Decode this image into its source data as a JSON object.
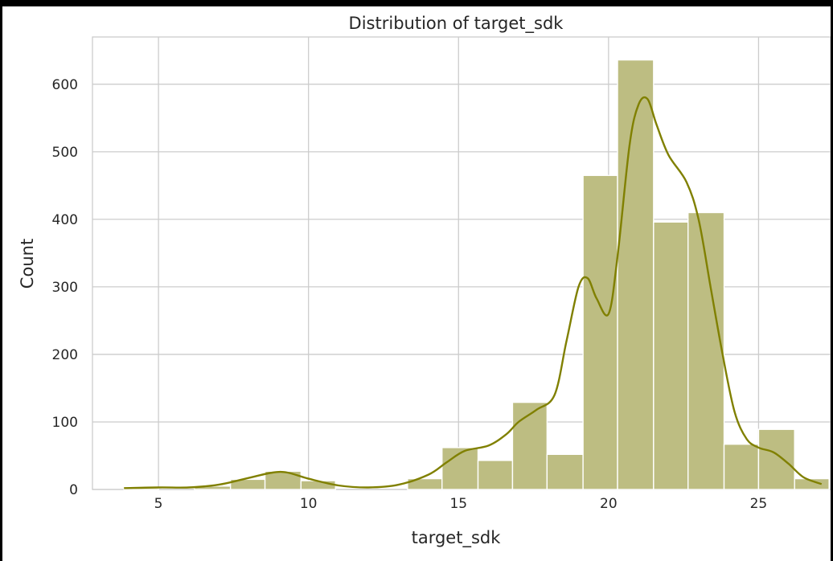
{
  "chart_data": {
    "type": "bar",
    "title": "Distribution of target_sdk",
    "xlabel": "target_sdk",
    "ylabel": "Count",
    "xlim": [
      2.8,
      27.4
    ],
    "ylim": [
      0,
      670
    ],
    "xticks": [
      5,
      10,
      15,
      20,
      25
    ],
    "yticks": [
      0,
      100,
      200,
      300,
      400,
      500,
      600
    ],
    "grid": true,
    "color": "#808000",
    "bar_color": "#bdbd82",
    "bins": [
      {
        "x0": 3.85,
        "x1": 5.0,
        "count": 2
      },
      {
        "x0": 5.0,
        "x1": 6.2,
        "count": 0
      },
      {
        "x0": 6.2,
        "x1": 7.4,
        "count": 5
      },
      {
        "x0": 7.4,
        "x1": 8.55,
        "count": 15
      },
      {
        "x0": 8.55,
        "x1": 9.75,
        "count": 27
      },
      {
        "x0": 9.75,
        "x1": 10.9,
        "count": 13
      },
      {
        "x0": 10.9,
        "x1": 12.1,
        "count": 0
      },
      {
        "x0": 12.1,
        "x1": 13.3,
        "count": 0
      },
      {
        "x0": 13.3,
        "x1": 14.45,
        "count": 16
      },
      {
        "x0": 14.45,
        "x1": 15.65,
        "count": 62
      },
      {
        "x0": 15.65,
        "x1": 16.8,
        "count": 43
      },
      {
        "x0": 16.8,
        "x1": 17.95,
        "count": 129
      },
      {
        "x0": 17.95,
        "x1": 19.15,
        "count": 52
      },
      {
        "x0": 19.15,
        "x1": 20.3,
        "count": 465
      },
      {
        "x0": 20.3,
        "x1": 21.5,
        "count": 636
      },
      {
        "x0": 21.5,
        "x1": 22.65,
        "count": 396
      },
      {
        "x0": 22.65,
        "x1": 23.85,
        "count": 410
      },
      {
        "x0": 23.85,
        "x1": 25.0,
        "count": 67
      },
      {
        "x0": 25.0,
        "x1": 26.2,
        "count": 89
      },
      {
        "x0": 26.2,
        "x1": 27.35,
        "count": 16
      }
    ],
    "kde": {
      "x": [
        3.85,
        5.0,
        6.0,
        7.0,
        8.0,
        8.8,
        9.3,
        10.0,
        11.0,
        12.0,
        13.0,
        14.0,
        14.6,
        15.2,
        16.0,
        16.6,
        17.0,
        17.6,
        18.2,
        18.6,
        19.0,
        19.3,
        19.6,
        20.0,
        20.3,
        20.7,
        21.0,
        21.3,
        21.6,
        22.0,
        22.6,
        23.0,
        23.4,
        23.8,
        24.2,
        24.6,
        25.0,
        25.5,
        26.0,
        26.5,
        27.1
      ],
      "y": [
        2,
        3,
        3,
        7,
        17,
        25,
        25,
        16,
        6,
        3,
        7,
        22,
        40,
        57,
        65,
        82,
        100,
        118,
        140,
        220,
        300,
        313,
        283,
        260,
        345,
        510,
        570,
        578,
        540,
        495,
        455,
        400,
        300,
        200,
        115,
        75,
        62,
        55,
        38,
        18,
        8
      ]
    }
  }
}
